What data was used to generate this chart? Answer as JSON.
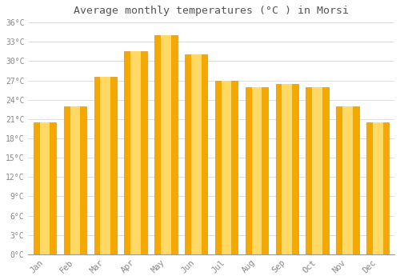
{
  "title": "Average monthly temperatures (°C ) in Morsi",
  "months": [
    "Jan",
    "Feb",
    "Mar",
    "Apr",
    "May",
    "Jun",
    "Jul",
    "Aug",
    "Sep",
    "Oct",
    "Nov",
    "Dec"
  ],
  "temperatures": [
    20.5,
    23.0,
    27.5,
    31.5,
    34.0,
    31.0,
    27.0,
    26.0,
    26.5,
    26.0,
    23.0,
    20.5
  ],
  "bar_color_edge": "#F5A800",
  "bar_color_center": "#FFD966",
  "bar_color_bottom": "#F5C842",
  "background_color": "#FFFFFF",
  "grid_color": "#DDDDDD",
  "tick_label_color": "#888888",
  "title_color": "#555555",
  "ylim": [
    0,
    36
  ],
  "ytick_step": 3,
  "bar_edge_color": "#C8963C"
}
